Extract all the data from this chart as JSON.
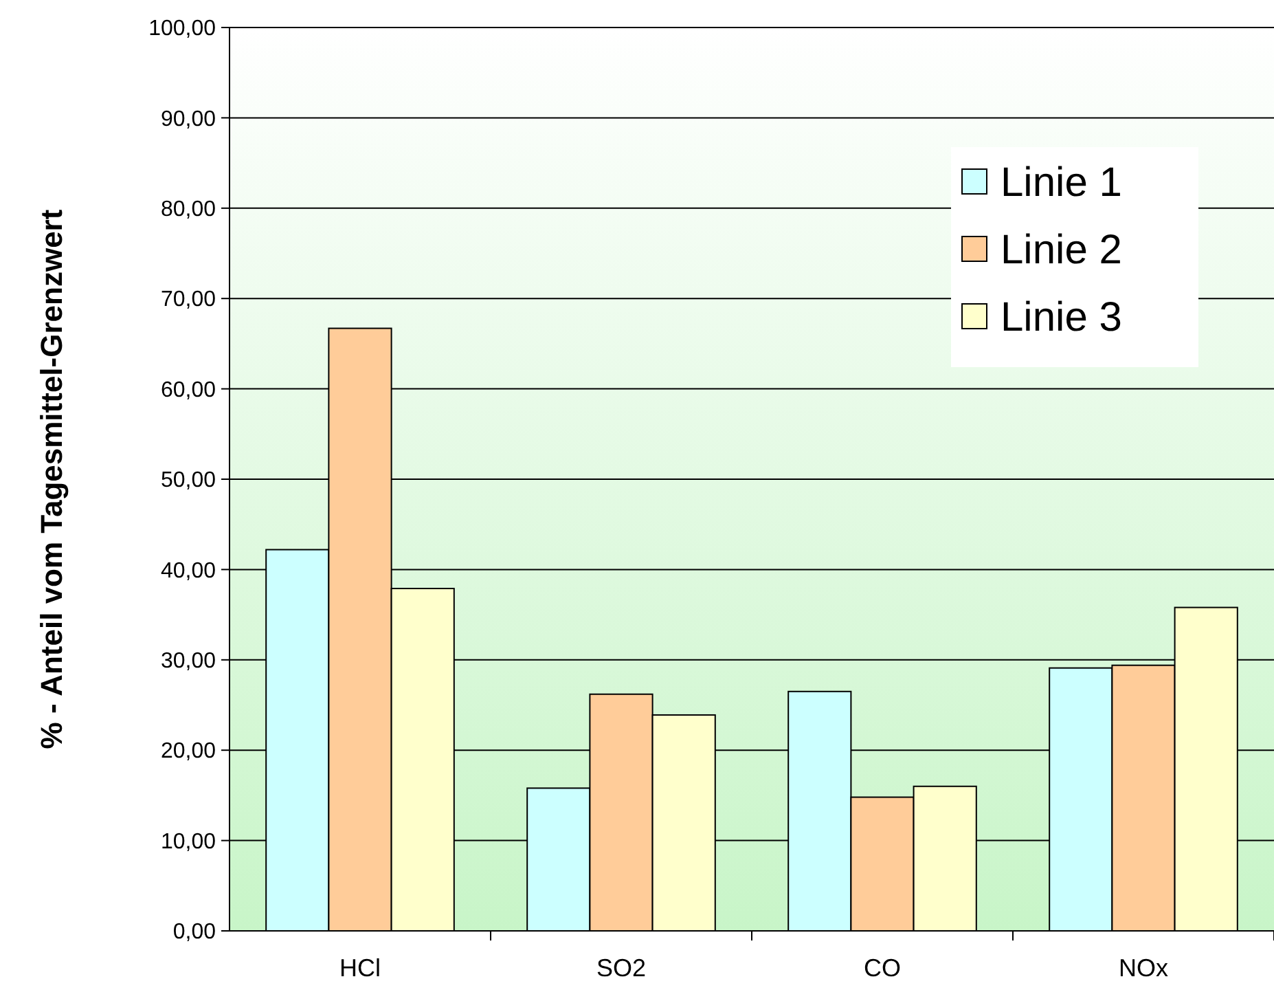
{
  "chart_data": {
    "type": "bar",
    "ylabel": "% - Anteil vom Tagesmittel-Grenzwert",
    "categories": [
      "HCl",
      "SO2",
      "CO",
      "NOx"
    ],
    "series": [
      {
        "name": "Linie 1",
        "color": "#ccffff",
        "values": [
          42.2,
          15.8,
          26.5,
          29.1
        ]
      },
      {
        "name": "Linie 2",
        "color": "#ffcc99",
        "values": [
          66.7,
          26.2,
          14.8,
          29.4
        ]
      },
      {
        "name": "Linie 3",
        "color": "#ffffcc",
        "values": [
          37.9,
          23.9,
          16.0,
          35.8
        ]
      }
    ],
    "ylim": [
      0,
      100
    ],
    "yticks": [
      {
        "value": 0,
        "label": "0,00"
      },
      {
        "value": 10,
        "label": "10,00"
      },
      {
        "value": 20,
        "label": "20,00"
      },
      {
        "value": 30,
        "label": "30,00"
      },
      {
        "value": 40,
        "label": "40,00"
      },
      {
        "value": 50,
        "label": "50,00"
      },
      {
        "value": 60,
        "label": "60,00"
      },
      {
        "value": 70,
        "label": "70,00"
      },
      {
        "value": 80,
        "label": "80,00"
      },
      {
        "value": 90,
        "label": "90,00"
      },
      {
        "value": 100,
        "label": "100,00"
      }
    ],
    "grid": "y",
    "legend": "top right"
  }
}
